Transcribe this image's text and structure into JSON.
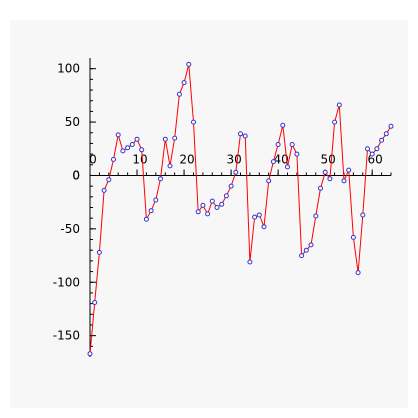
{
  "chart_data": {
    "type": "line",
    "title": "",
    "xlabel": "",
    "ylabel": "",
    "xlim": [
      0,
      64
    ],
    "ylim": [
      -170,
      110
    ],
    "x_ticks": [
      0,
      10,
      20,
      30,
      40,
      50,
      60
    ],
    "y_ticks": [
      -150,
      -100,
      -50,
      0,
      50,
      100
    ],
    "grid": false,
    "legend": "none",
    "line_color": "#ff0000",
    "marker_color": "#3333cc",
    "series": [
      {
        "x": [
          0,
          1,
          2,
          3,
          4,
          5,
          6,
          7,
          8,
          9,
          10,
          11,
          12,
          13,
          14,
          15,
          16,
          17,
          18,
          19,
          20,
          21,
          22,
          23,
          24,
          25,
          26,
          27,
          28,
          29,
          30,
          31,
          32,
          33,
          34,
          35,
          36,
          37,
          38,
          39,
          40,
          41,
          42,
          43,
          44,
          45,
          46,
          47,
          48,
          49,
          50,
          51,
          52,
          53,
          54,
          55,
          56,
          57,
          58,
          59,
          60,
          61,
          62,
          63,
          64
        ],
        "values": [
          -167,
          -119,
          -72,
          -14,
          -4,
          15,
          38,
          23,
          26,
          29,
          34,
          24,
          -41,
          -33,
          -23,
          -3,
          34,
          9,
          35,
          76,
          87,
          104,
          50,
          -34,
          -28,
          -36,
          -24,
          -30,
          -27,
          -19,
          -10,
          3,
          39,
          37,
          -81,
          -39,
          -37,
          -48,
          -5,
          13,
          29,
          47,
          8,
          29,
          20,
          -75,
          -70,
          -65,
          -38,
          -12,
          3,
          -3,
          50,
          66,
          -5,
          5,
          -58,
          -91,
          -37,
          25,
          20,
          25,
          33,
          39,
          46
        ]
      }
    ]
  }
}
